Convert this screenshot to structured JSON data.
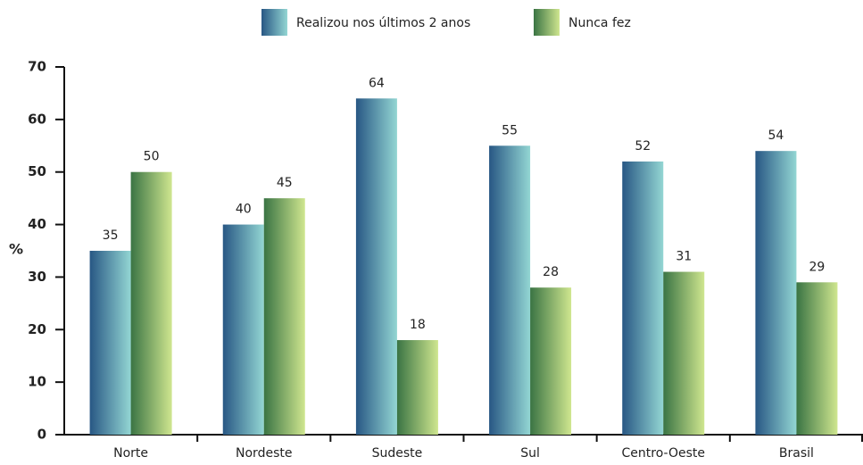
{
  "chart_data": {
    "type": "bar",
    "categories": [
      "Norte",
      "Nordeste",
      "Sudeste",
      "Sul",
      "Centro-Oeste",
      "Brasil"
    ],
    "series": [
      {
        "name": "Realizou nos últimos 2 anos",
        "color": "#285784",
        "values": [
          35,
          40,
          64,
          55,
          52,
          54
        ]
      },
      {
        "name": "Nunca fez",
        "color": "#3a7444",
        "values": [
          50,
          45,
          18,
          28,
          31,
          29
        ]
      }
    ],
    "ylabel": "%",
    "ylim": [
      0,
      70
    ],
    "yticks": [
      0,
      10,
      20,
      30,
      40,
      50,
      60,
      70
    ],
    "grid": false,
    "legend": "top"
  }
}
